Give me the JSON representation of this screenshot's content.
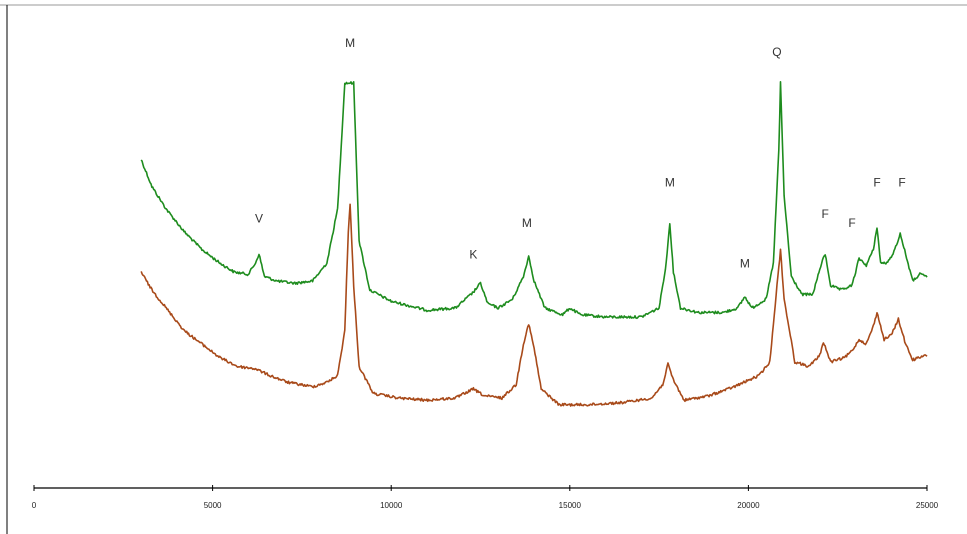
{
  "chart_data": {
    "type": "line",
    "title": "",
    "xlabel": "",
    "ylabel": "",
    "xlim": [
      0,
      25000
    ],
    "ylim": [
      0,
      100
    ],
    "grid": false,
    "legend": "none",
    "x_ticks": [
      0,
      5000,
      10000,
      15000,
      20000,
      25000
    ],
    "x_tick_labels": [
      "0",
      "5000",
      "10000",
      "15000",
      "20000",
      "25000"
    ],
    "series": [
      {
        "color": "#1e8c1e",
        "points": [
          [
            3000,
            73
          ],
          [
            3300,
            67
          ],
          [
            3700,
            62
          ],
          [
            4200,
            57
          ],
          [
            4700,
            53
          ],
          [
            5200,
            50
          ],
          [
            5600,
            48
          ],
          [
            6000,
            47.5
          ],
          [
            6200,
            50
          ],
          [
            6300,
            52
          ],
          [
            6450,
            47
          ],
          [
            6800,
            46
          ],
          [
            7300,
            45.5
          ],
          [
            7800,
            46
          ],
          [
            8200,
            50
          ],
          [
            8500,
            62
          ],
          [
            8700,
            90
          ],
          [
            8850,
            90
          ],
          [
            8950,
            90
          ],
          [
            9100,
            55
          ],
          [
            9400,
            44
          ],
          [
            10000,
            41.5
          ],
          [
            11000,
            39.5
          ],
          [
            11800,
            40
          ],
          [
            12300,
            43.5
          ],
          [
            12500,
            45.5
          ],
          [
            12700,
            41
          ],
          [
            13000,
            40
          ],
          [
            13400,
            42
          ],
          [
            13700,
            47
          ],
          [
            13850,
            51.5
          ],
          [
            14000,
            46
          ],
          [
            14300,
            40
          ],
          [
            14800,
            38.5
          ],
          [
            15000,
            40
          ],
          [
            15300,
            38.5
          ],
          [
            16000,
            38
          ],
          [
            17000,
            38
          ],
          [
            17500,
            40
          ],
          [
            17700,
            50
          ],
          [
            17800,
            59
          ],
          [
            17900,
            48
          ],
          [
            18100,
            40
          ],
          [
            18600,
            39
          ],
          [
            19300,
            39
          ],
          [
            19700,
            40
          ],
          [
            19900,
            42.5
          ],
          [
            20100,
            40
          ],
          [
            20500,
            42
          ],
          [
            20700,
            50
          ],
          [
            20850,
            75
          ],
          [
            20900,
            90
          ],
          [
            21000,
            65
          ],
          [
            21200,
            47
          ],
          [
            21500,
            43
          ],
          [
            21800,
            43
          ],
          [
            22050,
            50
          ],
          [
            22150,
            52
          ],
          [
            22300,
            45
          ],
          [
            22600,
            44
          ],
          [
            22900,
            45
          ],
          [
            23100,
            51
          ],
          [
            23300,
            49.5
          ],
          [
            23500,
            53
          ],
          [
            23600,
            58
          ],
          [
            23700,
            50
          ],
          [
            23900,
            50
          ],
          [
            24100,
            53
          ],
          [
            24250,
            56.5
          ],
          [
            24400,
            52
          ],
          [
            24600,
            46
          ],
          [
            24800,
            47.5
          ],
          [
            25000,
            47
          ]
        ]
      },
      {
        "color": "#a84a1a",
        "points": [
          [
            3000,
            48
          ],
          [
            3300,
            44
          ],
          [
            3700,
            40
          ],
          [
            4200,
            35
          ],
          [
            4700,
            32
          ],
          [
            5200,
            29
          ],
          [
            5700,
            27
          ],
          [
            6200,
            26.5
          ],
          [
            6600,
            25
          ],
          [
            7100,
            23.5
          ],
          [
            7800,
            22.5
          ],
          [
            8200,
            23.5
          ],
          [
            8500,
            25
          ],
          [
            8700,
            35
          ],
          [
            8800,
            57
          ],
          [
            8850,
            63
          ],
          [
            8950,
            45
          ],
          [
            9100,
            27
          ],
          [
            9500,
            21
          ],
          [
            10200,
            20
          ],
          [
            11000,
            19.5
          ],
          [
            11800,
            20
          ],
          [
            12300,
            22
          ],
          [
            12600,
            20.5
          ],
          [
            13100,
            20
          ],
          [
            13500,
            23
          ],
          [
            13700,
            32
          ],
          [
            13850,
            36.5
          ],
          [
            14000,
            31
          ],
          [
            14200,
            22
          ],
          [
            14700,
            18.5
          ],
          [
            15500,
            18.5
          ],
          [
            16500,
            19
          ],
          [
            17300,
            20
          ],
          [
            17600,
            23
          ],
          [
            17750,
            27.5
          ],
          [
            17900,
            24
          ],
          [
            18200,
            19.5
          ],
          [
            18900,
            20.5
          ],
          [
            19600,
            22.5
          ],
          [
            20300,
            25
          ],
          [
            20600,
            28
          ],
          [
            20800,
            45
          ],
          [
            20900,
            53
          ],
          [
            21000,
            42
          ],
          [
            21300,
            28
          ],
          [
            21700,
            27
          ],
          [
            22000,
            29.5
          ],
          [
            22100,
            32.5
          ],
          [
            22300,
            28
          ],
          [
            22700,
            29
          ],
          [
            22900,
            30.5
          ],
          [
            23100,
            33
          ],
          [
            23300,
            32
          ],
          [
            23500,
            36
          ],
          [
            23600,
            39
          ],
          [
            23800,
            33
          ],
          [
            24000,
            34
          ],
          [
            24200,
            37.5
          ],
          [
            24400,
            32
          ],
          [
            24600,
            28.5
          ],
          [
            24800,
            29
          ],
          [
            25000,
            29.5
          ]
        ]
      }
    ],
    "annotations": [
      {
        "text": "V",
        "x": 6300,
        "y": 59
      },
      {
        "text": "M",
        "x": 8850,
        "y": 98
      },
      {
        "text": "K",
        "x": 12300,
        "y": 51
      },
      {
        "text": "M",
        "x": 13800,
        "y": 58
      },
      {
        "text": "M",
        "x": 17800,
        "y": 67
      },
      {
        "text": "M",
        "x": 19900,
        "y": 49
      },
      {
        "text": "Q",
        "x": 20800,
        "y": 96
      },
      {
        "text": "F",
        "x": 22150,
        "y": 60
      },
      {
        "text": "F",
        "x": 22900,
        "y": 58
      },
      {
        "text": "F",
        "x": 23600,
        "y": 67
      },
      {
        "text": "F",
        "x": 24300,
        "y": 67
      }
    ]
  }
}
